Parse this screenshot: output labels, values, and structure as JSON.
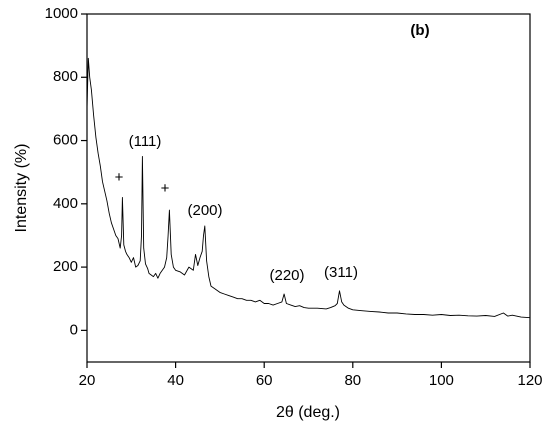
{
  "chart_data": {
    "type": "line",
    "x_label": "2θ (deg.)",
    "y_label": "Intensity (%)",
    "x": [
      20,
      20.3,
      20.6,
      21,
      21.5,
      22,
      22.5,
      23,
      23.5,
      24,
      24.5,
      25,
      25.5,
      26,
      26.5,
      27,
      27.5,
      27.8,
      28,
      28.3,
      28.7,
      29,
      29.5,
      30,
      30.5,
      31,
      31.5,
      32,
      32.3,
      32.5,
      32.8,
      33.2,
      33.7,
      34,
      34.5,
      35,
      35.5,
      36,
      36.5,
      37,
      37.5,
      38,
      38.3,
      38.6,
      39,
      39.5,
      40,
      41,
      42,
      43,
      44,
      44.5,
      45,
      45.5,
      46,
      46.3,
      46.6,
      47,
      47.5,
      48,
      49,
      50,
      51,
      52,
      53,
      54,
      55,
      56,
      57,
      58,
      59,
      60,
      61,
      62,
      63,
      64,
      64.5,
      65,
      66,
      67,
      68,
      69,
      70,
      72,
      74,
      75,
      76,
      76.5,
      77,
      77.5,
      78,
      79,
      80,
      82,
      84,
      86,
      88,
      90,
      92,
      94,
      96,
      98,
      100,
      102,
      104,
      106,
      108,
      110,
      112,
      114,
      115,
      116,
      118,
      120
    ],
    "values": [
      700,
      860,
      800,
      760,
      680,
      610,
      560,
      520,
      470,
      440,
      410,
      370,
      340,
      320,
      300,
      290,
      260,
      300,
      420,
      270,
      250,
      240,
      230,
      215,
      230,
      200,
      205,
      220,
      300,
      550,
      260,
      210,
      195,
      180,
      175,
      170,
      180,
      165,
      180,
      190,
      200,
      230,
      300,
      380,
      240,
      200,
      190,
      185,
      175,
      200,
      190,
      240,
      205,
      230,
      250,
      300,
      330,
      220,
      170,
      140,
      130,
      120,
      115,
      110,
      105,
      100,
      100,
      95,
      95,
      90,
      95,
      85,
      85,
      80,
      85,
      90,
      115,
      85,
      80,
      75,
      78,
      72,
      70,
      70,
      68,
      72,
      78,
      85,
      125,
      90,
      80,
      70,
      65,
      62,
      60,
      58,
      55,
      55,
      52,
      50,
      50,
      48,
      50,
      47,
      48,
      46,
      45,
      47,
      44,
      55,
      45,
      48,
      42,
      40
    ],
    "color": "#000000",
    "xlim": [
      20,
      120
    ],
    "xticks": [
      20,
      40,
      60,
      80,
      100,
      120
    ],
    "ylim": [
      -100,
      1000
    ],
    "yticks": [
      0,
      200,
      400,
      600,
      800,
      1000
    ],
    "grid": false,
    "annotations": [
      "(b)",
      "(111)",
      "+",
      "+",
      "(200)",
      "(220)",
      "(311)"
    ]
  }
}
